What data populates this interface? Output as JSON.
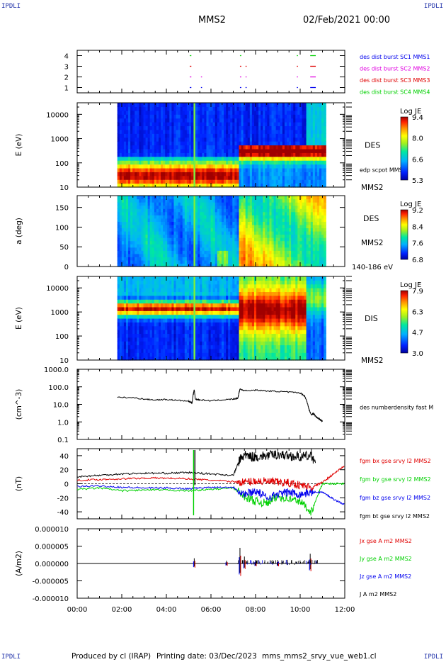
{
  "corners": {
    "tl": "IPDLI",
    "tr": "IPDLI",
    "bl": "IPDLI",
    "br": "IPDLI"
  },
  "header": {
    "spacecraft": "MMS2",
    "date": "02/Feb/2021 00:00"
  },
  "footer": {
    "producer": "Produced by cl (IRAP)",
    "printed": "Printing date: 03/Dec/2023",
    "file": "mms_mms2_srvy_vue_web1.cl"
  },
  "colors": {
    "red": "#e00000",
    "green": "#00d000",
    "blue": "#0000ee",
    "magenta": "#e000e0",
    "black": "#000000"
  },
  "chart_data": [
    {
      "type": "scatter",
      "id": "burst",
      "ylim": [
        0.5,
        4.5
      ],
      "yticks": [
        "1",
        "2",
        "3",
        "4"
      ],
      "legend": [
        {
          "name": "des dist burst SC1 MMS1",
          "color": "#0000ee"
        },
        {
          "name": "des dist burst SC2 MMS2",
          "color": "#e000e0"
        },
        {
          "name": "des dist burst SC3 MMS3",
          "color": "#e00000"
        },
        {
          "name": "des dist burst SC4 MMS4",
          "color": "#00d000"
        }
      ],
      "segments": [
        {
          "sc": 4,
          "t": [
            [
              5.05,
              5.12
            ],
            [
              7.3,
              7.36
            ],
            [
              9.85,
              9.9
            ],
            [
              10.45,
              10.7
            ]
          ]
        },
        {
          "sc": 3,
          "t": [
            [
              5.05,
              5.12
            ],
            [
              7.3,
              7.36
            ],
            [
              7.55,
              7.6
            ],
            [
              9.85,
              9.9
            ],
            [
              10.45,
              10.7
            ]
          ]
        },
        {
          "sc": 2,
          "t": [
            [
              5.05,
              5.12
            ],
            [
              5.55,
              5.6
            ],
            [
              7.3,
              7.36
            ],
            [
              7.55,
              7.6
            ],
            [
              9.85,
              9.9
            ],
            [
              10.45,
              10.7
            ]
          ]
        },
        {
          "sc": 1,
          "t": [
            [
              5.05,
              5.12
            ],
            [
              5.55,
              5.6
            ],
            [
              7.3,
              7.36
            ],
            [
              7.55,
              7.6
            ],
            [
              9.85,
              9.9
            ],
            [
              10.45,
              10.7
            ]
          ]
        }
      ]
    },
    {
      "type": "heatmap",
      "id": "des-energy",
      "ylabel": "E (eV)",
      "ylog": true,
      "ylim": [
        10,
        30000
      ],
      "yticks": [
        "10",
        "100",
        "1000",
        "10000"
      ],
      "xrange": [
        1.8,
        11.15
      ],
      "label": "DES",
      "sublabel": "MMS2",
      "overlay": "edp scpot MMS2",
      "colorbar": {
        "title": "Log JE",
        "ticks": [
          "9.4",
          "8.0",
          "6.6",
          "5.3"
        ]
      }
    },
    {
      "type": "heatmap",
      "id": "des-pitch",
      "ylabel": "a (deg)",
      "ylim": [
        0,
        180
      ],
      "yticks": [
        "0",
        "50",
        "100",
        "150"
      ],
      "xrange": [
        1.8,
        11.15
      ],
      "label": "DES",
      "sublabel": "MMS2",
      "range_label": "140-186 eV",
      "colorbar": {
        "title": "Log JE",
        "ticks": [
          "9.2",
          "8.4",
          "7.6",
          "6.8"
        ]
      }
    },
    {
      "type": "heatmap",
      "id": "dis-energy",
      "ylabel": "E (eV)",
      "ylog": true,
      "ylim": [
        10,
        30000
      ],
      "yticks": [
        "10",
        "100",
        "1000",
        "10000"
      ],
      "xrange": [
        1.8,
        11.15
      ],
      "label": "DIS",
      "sublabel": "MMS2",
      "colorbar": {
        "title": "Log JE",
        "ticks": [
          "7.9",
          "6.3",
          "4.7",
          "3.0"
        ]
      }
    },
    {
      "type": "line",
      "id": "density",
      "ylabel": "(cm^-3)",
      "ylog": true,
      "ylim": [
        0.1,
        1000
      ],
      "yticks": [
        "0.1",
        "1.0",
        "10.0",
        "100.0",
        "1000.0"
      ],
      "series": [
        {
          "name": "des numberdensity fast M",
          "color": "#000000",
          "x": [
            1.8,
            2.5,
            3.0,
            3.5,
            4.0,
            4.5,
            5.0,
            5.15,
            5.2,
            5.25,
            5.3,
            5.5,
            6.0,
            6.5,
            7.0,
            7.2,
            7.3,
            7.5,
            8.0,
            8.5,
            9.0,
            9.5,
            10.0,
            10.2,
            10.3,
            10.4,
            10.5,
            10.6,
            10.7,
            10.8,
            10.9,
            11.0
          ],
          "y": [
            25,
            24,
            20,
            18,
            19,
            17,
            15,
            12,
            35,
            70,
            20,
            18,
            16,
            18,
            20,
            22,
            75,
            60,
            65,
            58,
            55,
            50,
            45,
            30,
            15,
            5,
            2.5,
            3,
            2,
            1.6,
            1.3,
            1.1
          ]
        }
      ]
    },
    {
      "type": "line",
      "id": "bfield",
      "ylabel": "(nT)",
      "ylim": [
        -50,
        50
      ],
      "yticks": [
        "-40",
        "-20",
        "0",
        "20",
        "40"
      ],
      "series": [
        {
          "name": "fgm bx gse srvy l2 MMS2",
          "color": "#e00000",
          "x": [
            0,
            1,
            2,
            3,
            4,
            5,
            6,
            7,
            7.5,
            8,
            8.5,
            9,
            9.5,
            10,
            10.5,
            11,
            11.5,
            12
          ],
          "y": [
            5,
            6,
            7,
            8,
            8,
            7,
            5,
            3,
            2,
            4,
            3,
            2,
            1,
            -2,
            -5,
            2,
            14,
            26
          ]
        },
        {
          "name": "fgm by gse srvy l2 MMS2",
          "color": "#00d000",
          "x": [
            0,
            1,
            2,
            3,
            4,
            5,
            6,
            7,
            7.5,
            8,
            8.5,
            9,
            9.5,
            10,
            10.5,
            11,
            11.5,
            12
          ],
          "y": [
            -8,
            -6,
            -10,
            -9,
            -9,
            -10,
            -8,
            -6,
            -18,
            -25,
            -28,
            -18,
            -22,
            -25,
            -40,
            0,
            0,
            0
          ]
        },
        {
          "name": "fgm bz gse srvy l2 MMS2",
          "color": "#0000ee",
          "x": [
            0,
            1,
            2,
            3,
            4,
            5,
            6,
            7,
            7.5,
            8,
            8.5,
            9,
            9.5,
            10,
            10.5,
            11,
            11.5,
            12
          ],
          "y": [
            -4,
            -3,
            -5,
            -6,
            -6,
            -7,
            -5,
            -5,
            -15,
            -10,
            -20,
            -15,
            -12,
            -15,
            -12,
            -12,
            -22,
            -30
          ]
        },
        {
          "name": "fgm bt gse srvy l2 MMS2",
          "color": "#000000",
          "x": [
            0,
            1,
            2,
            3,
            4,
            5,
            6,
            7,
            7.3,
            7.5,
            8,
            8.5,
            9,
            9.5,
            10,
            10.5,
            10.7
          ],
          "y": [
            10,
            12,
            14,
            15,
            15,
            16,
            14,
            12,
            35,
            40,
            38,
            40,
            42,
            40,
            38,
            40,
            30
          ]
        }
      ]
    },
    {
      "type": "line",
      "id": "current",
      "ylabel": "(A/m2)",
      "ylim": [
        -1e-05,
        1e-05
      ],
      "yticks": [
        "-0.000010",
        "-0.000005",
        "0.000000",
        "0.000005",
        "0.000010"
      ],
      "series": [
        {
          "name": "Jx gse A m2 MMS2",
          "color": "#e00000"
        },
        {
          "name": "Jy gse A m2 MMS2",
          "color": "#00d000"
        },
        {
          "name": "Jz gse A m2 MMS2",
          "color": "#0000ee"
        },
        {
          "name": "J A m2 MMS2",
          "color": "#000000"
        }
      ],
      "spikes": [
        [
          5.25,
          1.5e-06
        ],
        [
          6.7,
          8e-07
        ],
        [
          7.3,
          4.5e-06
        ],
        [
          7.5,
          2e-06
        ],
        [
          8.0,
          1e-06
        ],
        [
          9.0,
          1e-06
        ],
        [
          10.45,
          2.8e-06
        ]
      ]
    }
  ],
  "xaxis": {
    "ticks": [
      "00:00",
      "02:00",
      "04:00",
      "06:00",
      "08:00",
      "10:00",
      "12:00"
    ],
    "range": [
      0,
      12
    ]
  }
}
